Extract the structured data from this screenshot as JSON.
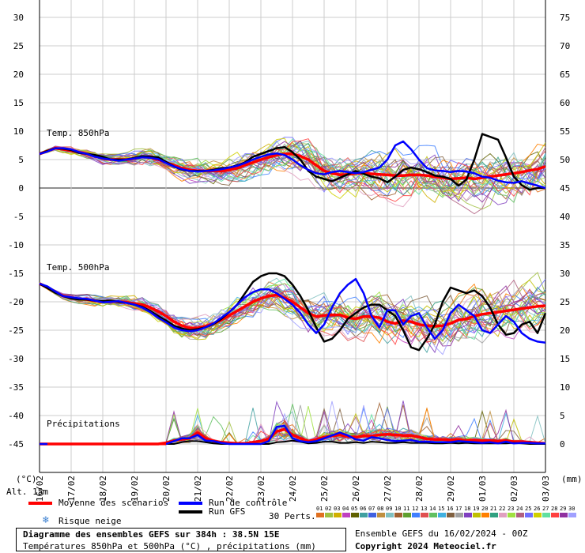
{
  "chart_data": {
    "type": "line",
    "title": "Diagramme des ensembles GEFS sur 384h : 38.5N 15E",
    "subtitle": "Températures 850hPa et 500hPa (°C) , précipitations (mm)",
    "altitude_label": "Alt. 15m",
    "left_unit": "(°C)",
    "right_unit": "(mm)",
    "left_ticks": [
      30,
      25,
      20,
      15,
      10,
      5,
      0,
      -5,
      -10,
      -15,
      -20,
      -25,
      -30,
      -35,
      -40,
      -45
    ],
    "right_ticks": [
      75,
      70,
      65,
      60,
      55,
      50,
      45,
      40,
      35,
      30,
      25,
      20,
      15,
      10,
      5,
      0
    ],
    "ylim": [
      -50,
      30
    ],
    "x_ticks": [
      "16/02",
      "17/02",
      "18/02",
      "19/02",
      "20/02",
      "21/02",
      "22/02",
      "23/02",
      "24/02",
      "25/02",
      "26/02",
      "27/02",
      "28/02",
      "29/02",
      "01/03",
      "02/03",
      "03/03"
    ],
    "section_labels": {
      "t850": "Temp. 850hPa",
      "t500": "Temp. 500hPa",
      "precip": "Précipitations"
    },
    "steps": 64,
    "series": [
      {
        "name": "Moyenne des scénarios (850hPa)",
        "color": "#ff0000",
        "width": 3.5,
        "values": [
          6,
          6.5,
          7,
          6.8,
          6.6,
          6.3,
          6,
          5.6,
          5.2,
          5,
          5,
          5,
          5.2,
          5.5,
          5.4,
          5,
          4.5,
          4,
          3.5,
          3.2,
          3,
          3,
          3,
          3,
          3.2,
          3.5,
          4,
          4.5,
          5,
          5.4,
          5.8,
          6,
          6,
          5.6,
          5,
          4,
          3,
          2.6,
          2.3,
          2.4,
          2.6,
          2.6,
          2.5,
          2.4,
          2.3,
          2.2,
          2.2,
          2.3,
          2.3,
          2.2,
          2,
          1.8,
          1.6,
          1.7,
          1.8,
          1.6,
          1.8,
          2,
          2.2,
          2.4,
          2.6,
          2.8,
          3.1,
          3.3,
          3.8
        ]
      },
      {
        "name": "Run GFS (850hPa)",
        "color": "#000000",
        "width": 2.5,
        "values": [
          6,
          6.5,
          7,
          6.9,
          6.7,
          6.2,
          6,
          5.8,
          5.5,
          5,
          5,
          5,
          5.3,
          5.6,
          5.5,
          5.4,
          4.6,
          3.8,
          3.2,
          3,
          3,
          3,
          3.2,
          3.5,
          3.6,
          4,
          4.5,
          5.5,
          6,
          6.5,
          7,
          7.2,
          6.3,
          5,
          3,
          2,
          1.6,
          1.2,
          1.8,
          2.4,
          3,
          2.5,
          2,
          1.7,
          1,
          2,
          3.2,
          3.6,
          3.3,
          2.8,
          2.2,
          2,
          1.6,
          0.4,
          1.5,
          5,
          9.5,
          9,
          8.5,
          5.4,
          2,
          0.5,
          -0.3,
          0,
          0
        ]
      },
      {
        "name": "Run de contrôle (850hPa)",
        "color": "#0000ff",
        "width": 2.5,
        "values": [
          6,
          6.4,
          7,
          7,
          6.8,
          6.3,
          6,
          5.5,
          5.2,
          5,
          4.8,
          5,
          5.2,
          5.4,
          5.3,
          5.1,
          4.4,
          3.8,
          3.3,
          3,
          2.9,
          3,
          3.1,
          3.3,
          3.6,
          3.9,
          4.4,
          5,
          5.5,
          5.9,
          6.1,
          5.8,
          5,
          4,
          3.2,
          2.6,
          2.4,
          2.8,
          3,
          2.8,
          2.6,
          2.8,
          3.2,
          3.6,
          5,
          7.5,
          8.2,
          6.8,
          5,
          3.5,
          3.1,
          3,
          2.8,
          3,
          2.9,
          2.6,
          2,
          1.8,
          1.3,
          1,
          0.9,
          1.2,
          0.8,
          0.4,
          0
        ]
      },
      {
        "name": "Moyenne des scénarios (500hPa)",
        "color": "#ff0000",
        "width": 3.5,
        "values": [
          -16.8,
          -17.5,
          -18.3,
          -19,
          -19.3,
          -19.5,
          -19.6,
          -19.8,
          -20,
          -19.9,
          -20,
          -20.1,
          -20.3,
          -20.5,
          -21,
          -21.7,
          -22.5,
          -23.5,
          -24.2,
          -24.6,
          -24.6,
          -24.3,
          -23.8,
          -23.2,
          -22.4,
          -21.6,
          -20.8,
          -20,
          -19.4,
          -19,
          -18.8,
          -19.3,
          -20,
          -21,
          -22,
          -22.6,
          -22.4,
          -22.3,
          -22.3,
          -22.8,
          -23,
          -22.6,
          -22.6,
          -22.8,
          -23.5,
          -23.8,
          -23.3,
          -23.5,
          -24,
          -24.2,
          -24.3,
          -24.2,
          -23.8,
          -23.2,
          -23,
          -22.5,
          -22.2,
          -22,
          -21.8,
          -21.6,
          -21.4,
          -21.2,
          -21,
          -20.8,
          -20.7
        ]
      },
      {
        "name": "Run GFS (500hPa)",
        "color": "#000000",
        "width": 2.5,
        "values": [
          -16.8,
          -17.6,
          -18.4,
          -19,
          -19.4,
          -19.6,
          -19.6,
          -19.8,
          -19.9,
          -19.8,
          -20,
          -20.2,
          -20.5,
          -20.9,
          -21.6,
          -22.5,
          -23.3,
          -24.2,
          -24.7,
          -25,
          -24.8,
          -24.5,
          -23.9,
          -23,
          -21.8,
          -20.5,
          -18.5,
          -16.5,
          -15.5,
          -15,
          -15,
          -15.5,
          -17,
          -19,
          -21.5,
          -24.5,
          -27,
          -26.5,
          -25,
          -23,
          -22,
          -21,
          -20.5,
          -20.5,
          -21.5,
          -22.5,
          -25,
          -28,
          -28.5,
          -26.5,
          -24,
          -20,
          -17.5,
          -18,
          -18.5,
          -18,
          -19,
          -21,
          -24,
          -25.8,
          -25.5,
          -24,
          -23.5,
          -25.5,
          -22
        ]
      },
      {
        "name": "Run de contrôle (500hPa)",
        "color": "#0000ff",
        "width": 2.5,
        "values": [
          -16.8,
          -17.3,
          -18.2,
          -19,
          -19.2,
          -19.4,
          -19.5,
          -19.8,
          -20.1,
          -20,
          -19.9,
          -20.2,
          -20.5,
          -21,
          -21.8,
          -22.8,
          -23.6,
          -24.5,
          -25,
          -25.2,
          -25,
          -24.5,
          -23.8,
          -22.8,
          -21.8,
          -20.5,
          -19.2,
          -18.3,
          -17.8,
          -17.8,
          -18.5,
          -19.5,
          -20.5,
          -22,
          -24,
          -25.5,
          -24,
          -21,
          -18.5,
          -17,
          -16,
          -18.5,
          -22.5,
          -24.5,
          -21.5,
          -21.5,
          -24,
          -22.5,
          -22,
          -24.5,
          -26.5,
          -25,
          -22,
          -20.5,
          -21.5,
          -22.5,
          -25,
          -25.5,
          -24,
          -22.5,
          -23.5,
          -25.5,
          -26.5,
          -27,
          -27.2
        ]
      },
      {
        "name": "Moyenne des scénarios (précipitations mm)",
        "color": "#ff0000",
        "width": 3.5,
        "values": [
          0,
          0,
          0,
          0,
          0,
          0,
          0,
          0,
          0,
          0,
          0,
          0,
          0,
          0,
          0,
          0,
          0.2,
          0.6,
          0.8,
          1,
          2,
          1,
          0.5,
          0.3,
          0.2,
          0.1,
          0.1,
          0.3,
          0.5,
          0.9,
          2.2,
          2.6,
          1.6,
          1,
          0.5,
          0.8,
          1.2,
          1.4,
          1.6,
          1.3,
          1.2,
          1.4,
          1.4,
          1.6,
          1.7,
          1.6,
          1.5,
          1.5,
          1.2,
          0.9,
          0.8,
          0.8,
          0.7,
          0.8,
          0.6,
          0.7,
          0.6,
          0.6,
          0.5,
          0.6,
          0.4,
          0.4,
          0.3,
          0.2,
          0.1
        ]
      },
      {
        "name": "Run GFS (précipitations mm)",
        "color": "#000000",
        "width": 2,
        "values": [
          0,
          0,
          0,
          0,
          0,
          0,
          0,
          0,
          0,
          0,
          0,
          0,
          0,
          0,
          0,
          0,
          0,
          0,
          0.3,
          0.5,
          0.5,
          0.3,
          0.1,
          0,
          0,
          0,
          0,
          0,
          0,
          0,
          0.3,
          0.4,
          0.6,
          0.4,
          0.1,
          0.2,
          0.4,
          0.4,
          0.2,
          0.2,
          0.3,
          0.2,
          0.4,
          0.3,
          0.2,
          0.2,
          0.3,
          0.2,
          0.2,
          0.2,
          0.1,
          0.1,
          0.2,
          0.1,
          0.2,
          0.1,
          0.1,
          0.1,
          0.1,
          0.1,
          0.2,
          0.1,
          0,
          0,
          0
        ]
      },
      {
        "name": "Run de contrôle (précipitations mm)",
        "color": "#0000ff",
        "width": 2.5,
        "values": [
          0,
          0,
          0,
          0,
          0,
          0,
          0,
          0,
          0,
          0,
          0,
          0,
          0,
          0,
          0,
          0,
          0,
          0.5,
          1,
          1,
          1.6,
          0.6,
          0.5,
          0.2,
          0,
          0,
          0,
          0,
          0,
          0.5,
          3,
          3.2,
          1,
          0.5,
          0.3,
          0.5,
          1,
          1.5,
          2,
          1.5,
          0.8,
          0.6,
          1.2,
          1,
          0.7,
          0.5,
          0.6,
          0.7,
          0.4,
          0.4,
          0.3,
          0.3,
          0.3,
          0.5,
          0.4,
          0.3,
          0.2,
          0.3,
          0.1,
          0.4,
          0.1,
          0.2,
          0.2,
          0.1,
          0.1
        ]
      }
    ],
    "perturbation_colors": [
      "#e07020",
      "#a0c040",
      "#d0b000",
      "#c040c0",
      "#606000",
      "#40a0a0",
      "#4060e0",
      "#c09040",
      "#80c0c0",
      "#a06030",
      "#60a030",
      "#4080ff",
      "#e05050",
      "#60c060",
      "#40b0e0",
      "#806040",
      "#a0a0a0",
      "#8040c0",
      "#c0c000",
      "#ff8000",
      "#30a080",
      "#e0a0c0",
      "#a0e040",
      "#b06080",
      "#7070ff",
      "#d0d000",
      "#60e0a0",
      "#ff4040",
      "#9030a0",
      "#a0a0ff"
    ]
  },
  "legend": {
    "mean": "Moyenne des scénarios",
    "control": "Run de contrôle",
    "gfs": "Run GFS",
    "snow_icon": "snowflake-icon",
    "snow": "Risque neige",
    "perts": "30 Perts.",
    "pert_numbers": [
      "01",
      "02",
      "03",
      "04",
      "05",
      "06",
      "07",
      "08",
      "09",
      "10",
      "11",
      "12",
      "13",
      "14",
      "15",
      "16",
      "17",
      "18",
      "19",
      "20",
      "21",
      "22",
      "23",
      "24",
      "25",
      "26",
      "27",
      "28",
      "29",
      "30"
    ]
  },
  "footer": {
    "ensemble": "Ensemble GEFS du 16/02/2024 - 00Z",
    "copyright": "Copyright 2024 Meteociel.fr"
  }
}
